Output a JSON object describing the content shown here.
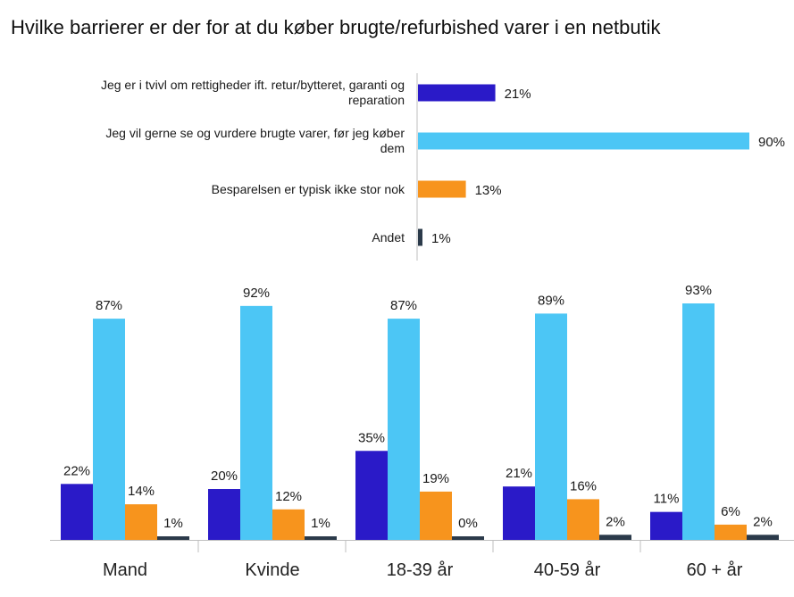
{
  "title": "Hvilke barrierer er der for at du køber brugte/refurbished varer i en netbutik",
  "colors": {
    "series1": "#2a1ac8",
    "series2": "#4cc6f5",
    "series3": "#f7941d",
    "series4": "#2b3a4a",
    "axis": "#bfbfbf"
  },
  "chart_data": [
    {
      "type": "bar",
      "orientation": "horizontal",
      "categories": [
        "Jeg er i tvivl om rettigheder ift. retur/bytteret, garanti og reparation",
        "Jeg vil gerne se og vurdere brugte varer, før jeg køber dem",
        "Besparelsen er typisk ikke stor nok",
        "Andet"
      ],
      "values": [
        21,
        90,
        13,
        1
      ],
      "value_labels": [
        "21%",
        "90%",
        "13%",
        "1%"
      ],
      "xlim": [
        0,
        100
      ]
    },
    {
      "type": "bar",
      "orientation": "vertical",
      "categories": [
        "Mand",
        "Kvinde",
        "18-39 år",
        "40-59 år",
        "60 + år"
      ],
      "series": [
        {
          "values": [
            22,
            20,
            35,
            21,
            11
          ],
          "labels": [
            "22%",
            "20%",
            "35%",
            "21%",
            "11%"
          ]
        },
        {
          "values": [
            87,
            92,
            87,
            89,
            93
          ],
          "labels": [
            "87%",
            "92%",
            "87%",
            "89%",
            "93%"
          ]
        },
        {
          "values": [
            14,
            12,
            19,
            16,
            6
          ],
          "labels": [
            "14%",
            "12%",
            "19%",
            "16%",
            "6%"
          ]
        },
        {
          "values": [
            1,
            1,
            0,
            2,
            2
          ],
          "labels": [
            "1%",
            "1%",
            "0%",
            "2%",
            "2%"
          ]
        }
      ],
      "ylim": [
        0,
        100
      ]
    }
  ]
}
